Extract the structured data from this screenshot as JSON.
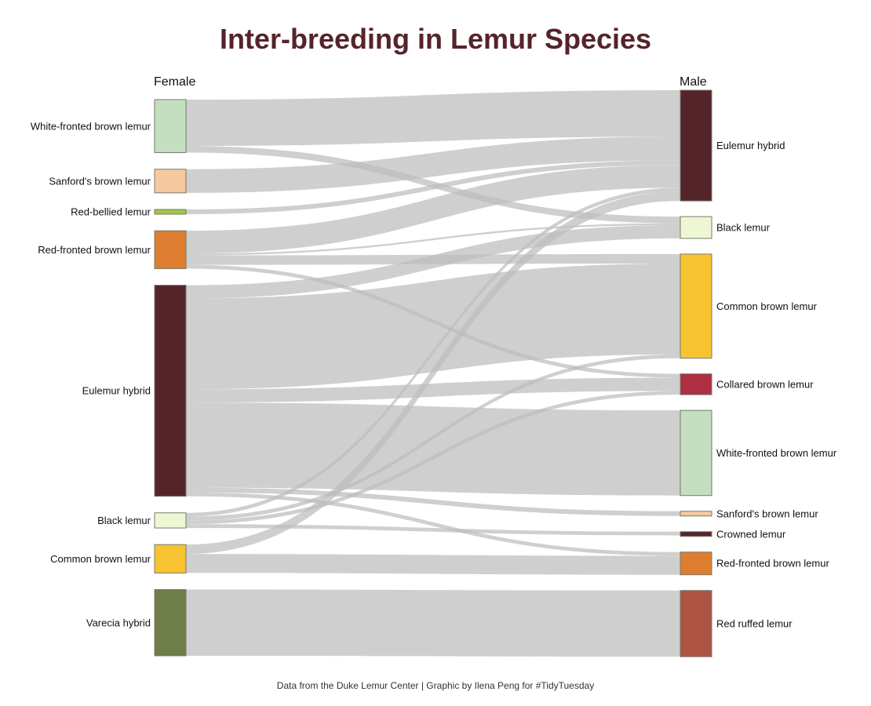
{
  "chart_data": {
    "type": "sankey",
    "title": "Inter-breeding in Lemur Species",
    "caption": "Data from the Duke Lemur Center | Graphic by Ilena Peng for #TidyTuesday",
    "left_axis_label": "Female",
    "right_axis_label": "Male",
    "link_color": "#bdbdbd",
    "female_nodes": [
      {
        "name": "White-fronted brown lemur",
        "color": "#c3dfbf"
      },
      {
        "name": "Sanford's brown lemur",
        "color": "#f5c8a0"
      },
      {
        "name": "Red-bellied lemur",
        "color": "#9fc64a"
      },
      {
        "name": "Red-fronted brown lemur",
        "color": "#de7d30"
      },
      {
        "name": "Eulemur hybrid",
        "color": "#55242a"
      },
      {
        "name": "Black lemur",
        "color": "#eef7d4"
      },
      {
        "name": "Common brown lemur",
        "color": "#f7c331"
      },
      {
        "name": "Varecia hybrid",
        "color": "#6f7d48"
      }
    ],
    "male_nodes": [
      {
        "name": "Eulemur hybrid",
        "color": "#55242a"
      },
      {
        "name": "Black lemur",
        "color": "#eef7d4"
      },
      {
        "name": "Common brown lemur",
        "color": "#f7c331"
      },
      {
        "name": "Collared brown lemur",
        "color": "#ae2e42"
      },
      {
        "name": "White-fronted brown lemur",
        "color": "#c3dfbf"
      },
      {
        "name": "Sanford's brown lemur",
        "color": "#f5c8a0"
      },
      {
        "name": "Crowned lemur",
        "color": "#55242a"
      },
      {
        "name": "Red-fronted brown lemur",
        "color": "#de7d30"
      },
      {
        "name": "Red ruffed lemur",
        "color": "#ae5443"
      }
    ],
    "links": [
      {
        "female": "White-fronted brown lemur",
        "male": "Eulemur hybrid",
        "value": 49
      },
      {
        "female": "White-fronted brown lemur",
        "male": "Black lemur",
        "value": 7
      },
      {
        "female": "Sanford's brown lemur",
        "male": "Eulemur hybrid",
        "value": 25
      },
      {
        "female": "Red-bellied lemur",
        "male": "Eulemur hybrid",
        "value": 5
      },
      {
        "female": "Red-fronted brown lemur",
        "male": "Eulemur hybrid",
        "value": 24
      },
      {
        "female": "Red-fronted brown lemur",
        "male": "Black lemur",
        "value": 2
      },
      {
        "female": "Red-fronted brown lemur",
        "male": "Common brown lemur",
        "value": 10
      },
      {
        "female": "Red-fronted brown lemur",
        "male": "Collared brown lemur",
        "value": 4
      },
      {
        "female": "Eulemur hybrid",
        "male": "Black lemur",
        "value": 14
      },
      {
        "female": "Eulemur hybrid",
        "male": "Common brown lemur",
        "value": 96
      },
      {
        "female": "Eulemur hybrid",
        "male": "Collared brown lemur",
        "value": 14
      },
      {
        "female": "Eulemur hybrid",
        "male": "White-fronted brown lemur",
        "value": 90
      },
      {
        "female": "Eulemur hybrid",
        "male": "Sanford's brown lemur",
        "value": 5
      },
      {
        "female": "Eulemur hybrid",
        "male": "Red-fronted brown lemur",
        "value": 4
      },
      {
        "female": "Black lemur",
        "male": "Eulemur hybrid",
        "value": 4
      },
      {
        "female": "Black lemur",
        "male": "Common brown lemur",
        "value": 4
      },
      {
        "female": "Black lemur",
        "male": "Collared brown lemur",
        "value": 4
      },
      {
        "female": "Black lemur",
        "male": "Crowned lemur",
        "value": 4
      },
      {
        "female": "Common brown lemur",
        "male": "Eulemur hybrid",
        "value": 10
      },
      {
        "female": "Common brown lemur",
        "male": "Red-fronted brown lemur",
        "value": 20
      },
      {
        "female": "Varecia hybrid",
        "male": "Red ruffed lemur",
        "value": 70
      }
    ]
  }
}
